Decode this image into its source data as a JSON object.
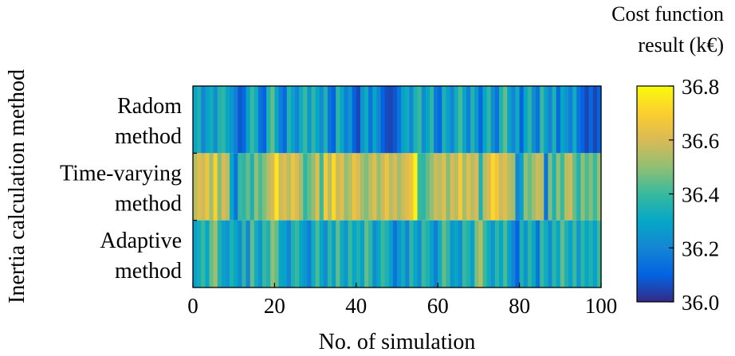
{
  "chart_data": {
    "type": "heatmap",
    "xlabel": "No. of simulation",
    "ylabel": "Inertia calculation method",
    "xlim": [
      0,
      100
    ],
    "x_ticks": [
      0,
      20,
      40,
      60,
      80,
      100
    ],
    "rows": [
      {
        "line1": "Radom",
        "line2": "method"
      },
      {
        "line1": "Time-varying",
        "line2": "method"
      },
      {
        "line1": "Adaptive",
        "line2": "method"
      }
    ],
    "colorbar": {
      "title_line1": "Cost function",
      "title_line2": "result (k€)",
      "range": [
        36.0,
        36.8
      ],
      "ticks": [
        "36.8",
        "36.6",
        "36.4",
        "36.2",
        "36.0"
      ],
      "colormap": [
        "#352a87",
        "#0363e1",
        "#1485d4",
        "#06a7c6",
        "#38b99e",
        "#92bf73",
        "#d9ba56",
        "#fcce2e",
        "#f9fb0e"
      ]
    },
    "values": [
      [
        36.3,
        36.35,
        36.2,
        36.28,
        36.33,
        36.22,
        36.36,
        36.38,
        36.3,
        36.25,
        36.18,
        36.08,
        36.12,
        36.28,
        36.4,
        36.32,
        36.15,
        36.1,
        36.35,
        36.45,
        36.3,
        36.18,
        36.12,
        36.36,
        36.28,
        36.2,
        36.32,
        36.4,
        36.25,
        36.38,
        36.3,
        36.22,
        36.35,
        36.15,
        36.1,
        36.38,
        36.3,
        36.18,
        36.25,
        36.1,
        36.05,
        36.25,
        36.32,
        36.15,
        36.3,
        36.2,
        36.1,
        36.06,
        36.05,
        36.08,
        36.15,
        36.28,
        36.32,
        36.2,
        36.35,
        36.4,
        36.22,
        36.3,
        36.38,
        36.16,
        36.12,
        36.35,
        36.28,
        36.2,
        36.32,
        36.42,
        36.3,
        36.18,
        36.36,
        36.25,
        36.12,
        36.3,
        36.38,
        36.22,
        36.15,
        36.35,
        36.45,
        36.28,
        36.2,
        36.32,
        36.1,
        36.3,
        36.38,
        36.22,
        36.15,
        36.4,
        36.28,
        36.2,
        36.35,
        36.12,
        36.3,
        36.25,
        36.18,
        36.32,
        36.15,
        36.1,
        36.05,
        36.12,
        36.05,
        36.1
      ],
      [
        36.55,
        36.62,
        36.58,
        36.65,
        36.52,
        36.7,
        36.48,
        36.6,
        36.55,
        36.3,
        36.15,
        36.4,
        36.38,
        36.45,
        36.35,
        36.5,
        36.42,
        36.48,
        36.55,
        36.6,
        36.75,
        36.58,
        36.62,
        36.55,
        36.65,
        36.6,
        36.52,
        36.38,
        36.45,
        36.5,
        36.62,
        36.4,
        36.68,
        36.55,
        36.72,
        36.58,
        36.62,
        36.5,
        36.55,
        36.65,
        36.6,
        36.52,
        36.48,
        36.55,
        36.62,
        36.5,
        36.58,
        36.65,
        36.55,
        36.6,
        36.52,
        36.58,
        36.62,
        36.66,
        36.78,
        36.4,
        36.38,
        36.45,
        36.5,
        36.58,
        36.55,
        36.62,
        36.48,
        36.6,
        36.55,
        36.68,
        36.52,
        36.62,
        36.55,
        36.6,
        36.35,
        36.55,
        36.6,
        36.72,
        36.66,
        36.58,
        36.62,
        36.55,
        36.52,
        36.2,
        36.28,
        36.5,
        36.45,
        36.52,
        36.58,
        36.55,
        36.15,
        36.48,
        36.35,
        36.5,
        36.4,
        36.55,
        36.58,
        36.45,
        36.35,
        36.5,
        36.42,
        36.48,
        36.4,
        36.5
      ],
      [
        36.28,
        36.32,
        36.4,
        36.3,
        36.45,
        36.52,
        36.35,
        36.28,
        36.25,
        36.35,
        36.3,
        36.22,
        36.38,
        36.2,
        36.45,
        36.32,
        36.25,
        36.4,
        36.35,
        36.5,
        36.45,
        36.3,
        36.28,
        36.2,
        36.35,
        36.4,
        36.3,
        36.25,
        36.18,
        36.32,
        36.42,
        36.3,
        36.22,
        36.38,
        36.28,
        36.45,
        36.32,
        36.25,
        36.4,
        36.3,
        36.35,
        36.28,
        36.45,
        36.38,
        36.22,
        36.3,
        36.4,
        36.35,
        36.28,
        36.15,
        36.25,
        36.32,
        36.2,
        36.38,
        36.3,
        36.22,
        36.4,
        36.35,
        36.28,
        36.18,
        36.32,
        36.45,
        36.38,
        36.25,
        36.3,
        36.22,
        36.4,
        36.35,
        36.28,
        36.48,
        36.55,
        36.4,
        36.32,
        36.25,
        36.38,
        36.3,
        36.42,
        36.28,
        36.2,
        36.1,
        36.35,
        36.25,
        36.38,
        36.3,
        36.15,
        36.4,
        36.32,
        36.22,
        36.38,
        36.3,
        36.45,
        36.35,
        36.28,
        36.4,
        36.25,
        36.38,
        36.3,
        36.35,
        36.28,
        36.4
      ]
    ]
  }
}
